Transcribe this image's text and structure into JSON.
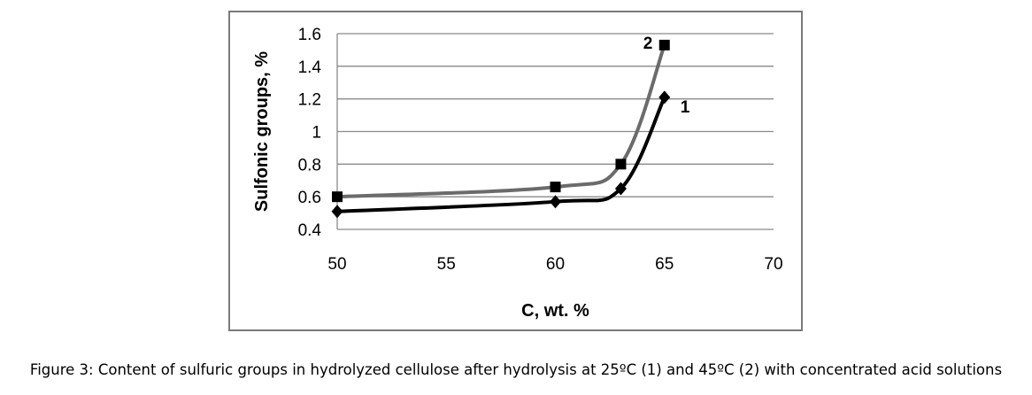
{
  "chart_data": {
    "type": "line",
    "xlabel": "C, wt. %",
    "ylabel": "Sulfonic groups, %",
    "xlim": [
      50,
      70
    ],
    "ylim": [
      0.4,
      1.6
    ],
    "xticks": [
      50,
      55,
      60,
      65,
      70
    ],
    "xtick_labels": [
      "50",
      "55",
      "60",
      "65",
      "70"
    ],
    "yticks": [
      0.4,
      0.6,
      0.8,
      1.0,
      1.2,
      1.4,
      1.6
    ],
    "ytick_labels": [
      "0.4",
      "0.6",
      "0.8",
      "1",
      "1.2",
      "1.4",
      "1.6"
    ],
    "grid": "horizontal",
    "series": [
      {
        "name": "1",
        "marker": "diamond",
        "color": "#000000",
        "x": [
          50,
          60,
          63,
          65
        ],
        "y": [
          0.51,
          0.57,
          0.65,
          1.21
        ]
      },
      {
        "name": "2",
        "marker": "square",
        "color": "#6b6b6b",
        "x": [
          50,
          60,
          63,
          65
        ],
        "y": [
          0.6,
          0.66,
          0.8,
          1.53
        ]
      }
    ]
  },
  "caption": "Figure 3: Content of sulfuric groups in hydrolyzed cellulose after hydrolysis at 25ºC (1) and  45ºC (2) with concentrated acid solutions"
}
